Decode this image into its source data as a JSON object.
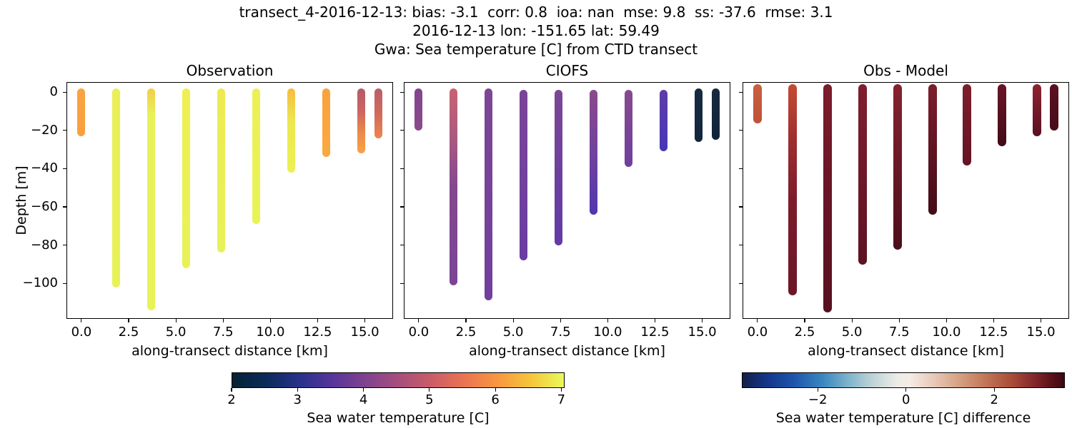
{
  "figure": {
    "suptitle_lines": [
      "transect_4-2016-12-13: bias: -3.1  corr: 0.8  ioa: nan  mse: 9.8  ss: -37.6  rmse: 3.1",
      "2016-12-13 lon: -151.65 lat: 59.49",
      "Gwa: Sea temperature [C] from CTD transect"
    ],
    "background_color": "#ffffff"
  },
  "axes": {
    "xlabel": "along-transect distance [km]",
    "ylabel": "Depth [m]",
    "xlim": [
      -0.79,
      16.49
    ],
    "ylim": [
      -118.6,
      5.3
    ],
    "xticks": [
      0.0,
      2.5,
      5.0,
      7.5,
      10.0,
      12.5,
      15.0
    ],
    "xtick_labels": [
      "0.0",
      "2.5",
      "5.0",
      "7.5",
      "10.0",
      "12.5",
      "15.0"
    ],
    "yticks": [
      0,
      -20,
      -40,
      -60,
      -80,
      -100
    ],
    "ytick_labels": [
      "0",
      "−20",
      "−40",
      "−60",
      "−80",
      "−100"
    ],
    "grid": false
  },
  "chart_data": [
    {
      "type": "scatter",
      "title": "Observation",
      "xlabel": "along-transect distance [km]",
      "ylabel": "Depth [m]",
      "colormap": "thermal",
      "color_range_c": [
        2,
        7.05
      ],
      "profiles": [
        {
          "x_km": 0.0,
          "depth_top_m": 0,
          "depth_bottom_m": -21,
          "temp_c_top": 6.1,
          "temp_c_bottom": 6.1,
          "gradient": [
            "#f9a342 0%",
            "#f8a03d 100%"
          ]
        },
        {
          "x_km": 1.85,
          "depth_top_m": 0,
          "depth_bottom_m": -100,
          "temp_c_top": 6.9,
          "temp_c_bottom": 6.9,
          "gradient": [
            "#e9ef55 0%",
            "#e7f258 100%"
          ]
        },
        {
          "x_km": 3.7,
          "depth_top_m": 0,
          "depth_bottom_m": -112,
          "temp_c_top": 6.6,
          "temp_c_bottom": 6.9,
          "gradient": [
            "#f2cd4b 0%",
            "#e7f258 12%",
            "#e7f359 100%"
          ]
        },
        {
          "x_km": 5.55,
          "depth_top_m": 0,
          "depth_bottom_m": -90,
          "temp_c_top": 6.9,
          "temp_c_bottom": 6.9,
          "gradient": [
            "#eef04f 0%",
            "#e7f258 100%"
          ]
        },
        {
          "x_km": 7.4,
          "depth_top_m": 0,
          "depth_bottom_m": -82,
          "temp_c_top": 6.9,
          "temp_c_bottom": 6.9,
          "gradient": [
            "#edea52 0%",
            "#e7f259 100%"
          ]
        },
        {
          "x_km": 9.25,
          "depth_top_m": 0,
          "depth_bottom_m": -67,
          "temp_c_top": 6.9,
          "temp_c_bottom": 6.9,
          "gradient": [
            "#ecf055 0%",
            "#e8f357 100%"
          ]
        },
        {
          "x_km": 11.1,
          "depth_top_m": 0,
          "depth_bottom_m": -40,
          "temp_c_top": 6.5,
          "temp_c_bottom": 6.9,
          "gradient": [
            "#f6bc41 0%",
            "#ebe84f 40%",
            "#ecf155 100%"
          ]
        },
        {
          "x_km": 12.95,
          "depth_top_m": 0,
          "depth_bottom_m": -32,
          "temp_c_top": 6.1,
          "temp_c_bottom": 6.2,
          "gradient": [
            "#f9a23d 0%",
            "#faa940 100%"
          ]
        },
        {
          "x_km": 14.8,
          "depth_top_m": 0,
          "depth_bottom_m": -30,
          "temp_c_top": 4.9,
          "temp_c_bottom": 6.0,
          "gradient": [
            "#b25b69 0%",
            "#ce6460 35%",
            "#ee8b49 70%",
            "#f8a344 100%"
          ]
        },
        {
          "x_km": 15.7,
          "depth_top_m": 0,
          "depth_bottom_m": -22,
          "temp_c_top": 4.9,
          "temp_c_bottom": 5.8,
          "gradient": [
            "#ba5e6b 0%",
            "#d06a5c 50%",
            "#ee8450 100%"
          ]
        }
      ]
    },
    {
      "type": "scatter",
      "title": "CIOFS",
      "xlabel": "along-transect distance [km]",
      "ylabel": "Depth [m]",
      "colormap": "thermal",
      "color_range_c": [
        2,
        7.05
      ],
      "profiles": [
        {
          "x_km": 0.0,
          "depth_top_m": 0,
          "depth_bottom_m": -18,
          "temp_c_top": 4.1,
          "temp_c_bottom": 4.1,
          "gradient": [
            "#82448f 0%",
            "#8a4a8a 100%"
          ]
        },
        {
          "x_km": 1.85,
          "depth_top_m": 0,
          "depth_bottom_m": -99,
          "temp_c_top": 5.0,
          "temp_c_bottom": 4.0,
          "gradient": [
            "#ca6270 0%",
            "#ab5981 25%",
            "#84488f 50%",
            "#7a4496 100%"
          ]
        },
        {
          "x_km": 3.7,
          "depth_top_m": 0,
          "depth_bottom_m": -107,
          "temp_c_top": 3.9,
          "temp_c_bottom": 3.8,
          "gradient": [
            "#7d4695 0%",
            "#713f9d 100%"
          ]
        },
        {
          "x_km": 5.55,
          "depth_top_m": -1,
          "depth_bottom_m": -86,
          "temp_c_top": 3.9,
          "temp_c_bottom": 3.8,
          "gradient": [
            "#7b4597 0%",
            "#6a3da2 100%"
          ]
        },
        {
          "x_km": 7.4,
          "depth_top_m": -1,
          "depth_bottom_m": -78,
          "temp_c_top": 3.9,
          "temp_c_bottom": 3.7,
          "gradient": [
            "#7d4695 0%",
            "#613ba6 100%"
          ]
        },
        {
          "x_km": 9.25,
          "depth_top_m": -1,
          "depth_bottom_m": -62,
          "temp_c_top": 4.0,
          "temp_c_bottom": 3.4,
          "gradient": [
            "#8b4a8b 0%",
            "#6f41a0 55%",
            "#4f37ae 100%"
          ]
        },
        {
          "x_km": 11.1,
          "depth_top_m": -1,
          "depth_bottom_m": -37,
          "temp_c_top": 4.0,
          "temp_c_bottom": 3.8,
          "gradient": [
            "#89498d 0%",
            "#6e40a0 100%"
          ]
        },
        {
          "x_km": 12.95,
          "depth_top_m": -1,
          "depth_bottom_m": -29,
          "temp_c_top": 3.3,
          "temp_c_bottom": 3.1,
          "gradient": [
            "#5e3caa 0%",
            "#4537b6 100%"
          ]
        },
        {
          "x_km": 14.8,
          "depth_top_m": 0,
          "depth_bottom_m": -24,
          "temp_c_top": 2.2,
          "temp_c_bottom": 2.2,
          "gradient": [
            "#172a42 0%",
            "#13263c 100%"
          ]
        },
        {
          "x_km": 15.7,
          "depth_top_m": 0,
          "depth_bottom_m": -23,
          "temp_c_top": 2.2,
          "temp_c_bottom": 2.2,
          "gradient": [
            "#16293f 0%",
            "#122438 100%"
          ]
        }
      ]
    },
    {
      "type": "scatter",
      "title": "Obs - Model",
      "xlabel": "along-transect distance [km]",
      "ylabel": "Depth [m]",
      "colormap": "balance",
      "color_range_c": [
        -3.72,
        3.6
      ],
      "profiles": [
        {
          "x_km": 0.0,
          "depth_top_m": 0,
          "depth_bottom_m": -14,
          "diff_c_top": 2.3,
          "diff_c_bottom": 2.3,
          "gradient": [
            "#c86040 0%",
            "#bf5238 100%"
          ]
        },
        {
          "x_km": 1.85,
          "depth_top_m": 0,
          "depth_bottom_m": -104,
          "diff_c_top": 2.5,
          "diff_c_bottom": 3.1,
          "gradient": [
            "#c54c32 0%",
            "#a03030 25%",
            "#7c1c2b 55%",
            "#6c1626 100%"
          ]
        },
        {
          "x_km": 3.7,
          "depth_top_m": 0,
          "depth_bottom_m": -113,
          "diff_c_top": 3.2,
          "diff_c_bottom": 3.4,
          "gradient": [
            "#7c1c2b 0%",
            "#661424 55%",
            "#571020 100%"
          ]
        },
        {
          "x_km": 5.55,
          "depth_top_m": 0,
          "depth_bottom_m": -88,
          "diff_c_top": 3.1,
          "diff_c_bottom": 3.4,
          "gradient": [
            "#801e2d 0%",
            "#5d1222 100%"
          ]
        },
        {
          "x_km": 7.4,
          "depth_top_m": 0,
          "depth_bottom_m": -80,
          "diff_c_top": 3.0,
          "diff_c_bottom": 3.5,
          "gradient": [
            "#86222f 0%",
            "#4c0e1c 100%"
          ]
        },
        {
          "x_km": 9.25,
          "depth_top_m": 0,
          "depth_bottom_m": -62,
          "diff_c_top": 3.1,
          "diff_c_bottom": 3.5,
          "gradient": [
            "#7e1d2c 0%",
            "#420c18 100%"
          ]
        },
        {
          "x_km": 11.1,
          "depth_top_m": 0,
          "depth_bottom_m": -36,
          "diff_c_top": 3.1,
          "diff_c_bottom": 3.2,
          "gradient": [
            "#7e1e2c 0%",
            "#641424 100%"
          ]
        },
        {
          "x_km": 12.95,
          "depth_top_m": 0,
          "depth_bottom_m": -26,
          "diff_c_top": 3.3,
          "diff_c_bottom": 3.5,
          "gradient": [
            "#6a1526 0%",
            "#420b17 100%"
          ]
        },
        {
          "x_km": 14.8,
          "depth_top_m": 0,
          "depth_bottom_m": -21,
          "diff_c_top": 3.0,
          "diff_c_bottom": 3.3,
          "gradient": [
            "#8d2531 0%",
            "#6f1727 60%",
            "#591021 100%"
          ]
        },
        {
          "x_km": 15.7,
          "depth_top_m": 0,
          "depth_bottom_m": -18,
          "diff_c_top": 3.4,
          "diff_c_bottom": 3.5,
          "gradient": [
            "#5c1120 0%",
            "#450c19 100%"
          ]
        }
      ]
    }
  ],
  "colorbars": [
    {
      "label": "Sea water temperature [C]",
      "range": [
        2,
        7.05
      ],
      "tick_values": [
        2,
        3,
        4,
        5,
        6,
        7
      ],
      "tick_labels": [
        "2",
        "3",
        "4",
        "5",
        "6",
        "7"
      ],
      "gradient": [
        "#042333 0%",
        "#0b2a59 10%",
        "#27308a 20%",
        "#56359a 30%",
        "#7f428f 40%",
        "#a64e7d 50%",
        "#ca5c68 60%",
        "#ea7452 70%",
        "#f8973f 80%",
        "#f5c53c 90%",
        "#e9fa5a 100%"
      ]
    },
    {
      "label": "Sea water temperature [C] difference",
      "range": [
        -3.72,
        3.6
      ],
      "tick_values": [
        -2,
        0,
        2
      ],
      "tick_labels": [
        "−2",
        "0",
        "2"
      ],
      "gradient": [
        "#11204a 0%",
        "#15368c 8%",
        "#1d55ab 16%",
        "#3a87c0 25%",
        "#7fb4cc 33%",
        "#bcd2d6 40%",
        "#ecebe7 48%",
        "#f5ece5 52%",
        "#e7c6b4 60%",
        "#d49d7f 68%",
        "#c07354 76%",
        "#a84a38 84%",
        "#82252a 91%",
        "#5b1119 96%",
        "#3c0912 100%"
      ]
    }
  ]
}
